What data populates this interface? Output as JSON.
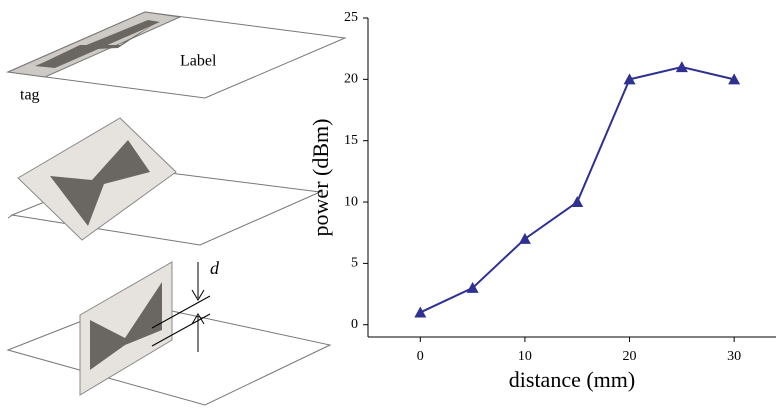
{
  "illustration": {
    "plane_label": "Label",
    "tag_label": "tag",
    "gap_label": "d"
  },
  "chart_data": {
    "type": "line",
    "x_label": "distance (mm)",
    "y_label": "power (dBm)",
    "x": [
      0,
      5,
      10,
      15,
      20,
      25,
      30
    ],
    "series": [
      {
        "color": "#2e3192",
        "values": [
          1,
          3,
          7,
          10,
          20,
          21,
          20
        ]
      }
    ],
    "xlim": [
      -5,
      34
    ],
    "xticks": [
      0,
      10,
      20,
      30
    ],
    "ylim": [
      -1,
      25
    ],
    "yticks": [
      0,
      5,
      10,
      15,
      20,
      25
    ]
  }
}
